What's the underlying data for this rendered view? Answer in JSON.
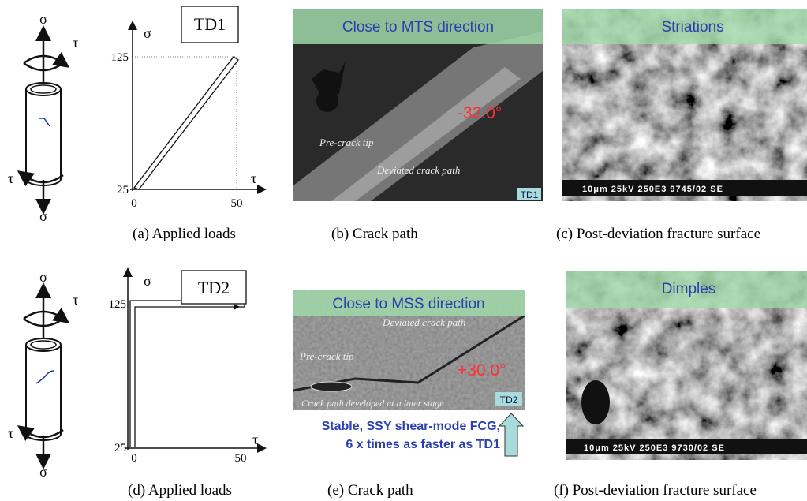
{
  "panels": [
    {
      "specimen": {
        "top_normal": "σ",
        "top_shear": "τ",
        "bottom_shear": "τ",
        "bottom_normal": "σ"
      },
      "load_path": {
        "box_label": "TD1",
        "y_symbol": "σ",
        "x_symbol": "τ",
        "y_top": "125",
        "y_bottom": "25",
        "x_left": "0",
        "x_right": "50",
        "caption": "(a) Applied loads"
      },
      "crack_image": {
        "banner": "Close to MTS direction",
        "labels": [
          "Pre-crack tip",
          "Deviated crack path"
        ],
        "angle": "-32.0°",
        "tag": "TD1",
        "caption": "(b) Crack path"
      },
      "fracture_image": {
        "banner": "Striations",
        "scale_bar": "10μm 25kV 250E3 9745/02 SE",
        "caption": "(c) Post-deviation fracture surface"
      }
    },
    {
      "specimen": {
        "top_normal": "σ",
        "top_shear": "τ",
        "bottom_shear": "τ",
        "bottom_normal": "σ"
      },
      "load_path": {
        "box_label": "TD2",
        "y_symbol": "σ",
        "x_symbol": "τ",
        "y_top": "125",
        "y_bottom": "25",
        "x_left": "0",
        "x_right": "50",
        "caption": "(d) Applied loads"
      },
      "crack_image": {
        "banner": "Close to MSS direction",
        "labels": [
          "Deviated crack path",
          "Pre-crack tip",
          "Crack path developed at a later stage"
        ],
        "angle": "+30.0°",
        "tag": "TD2",
        "note": [
          "Stable, SSY shear-mode FCG,",
          "6 x times as faster as TD1"
        ],
        "caption": "(e) Crack path"
      },
      "fracture_image": {
        "banner": "Dimples",
        "scale_bar": "10μm 25kV 250E3 9730/02 SE",
        "caption": "(f) Post-deviation fracture surface"
      }
    }
  ]
}
